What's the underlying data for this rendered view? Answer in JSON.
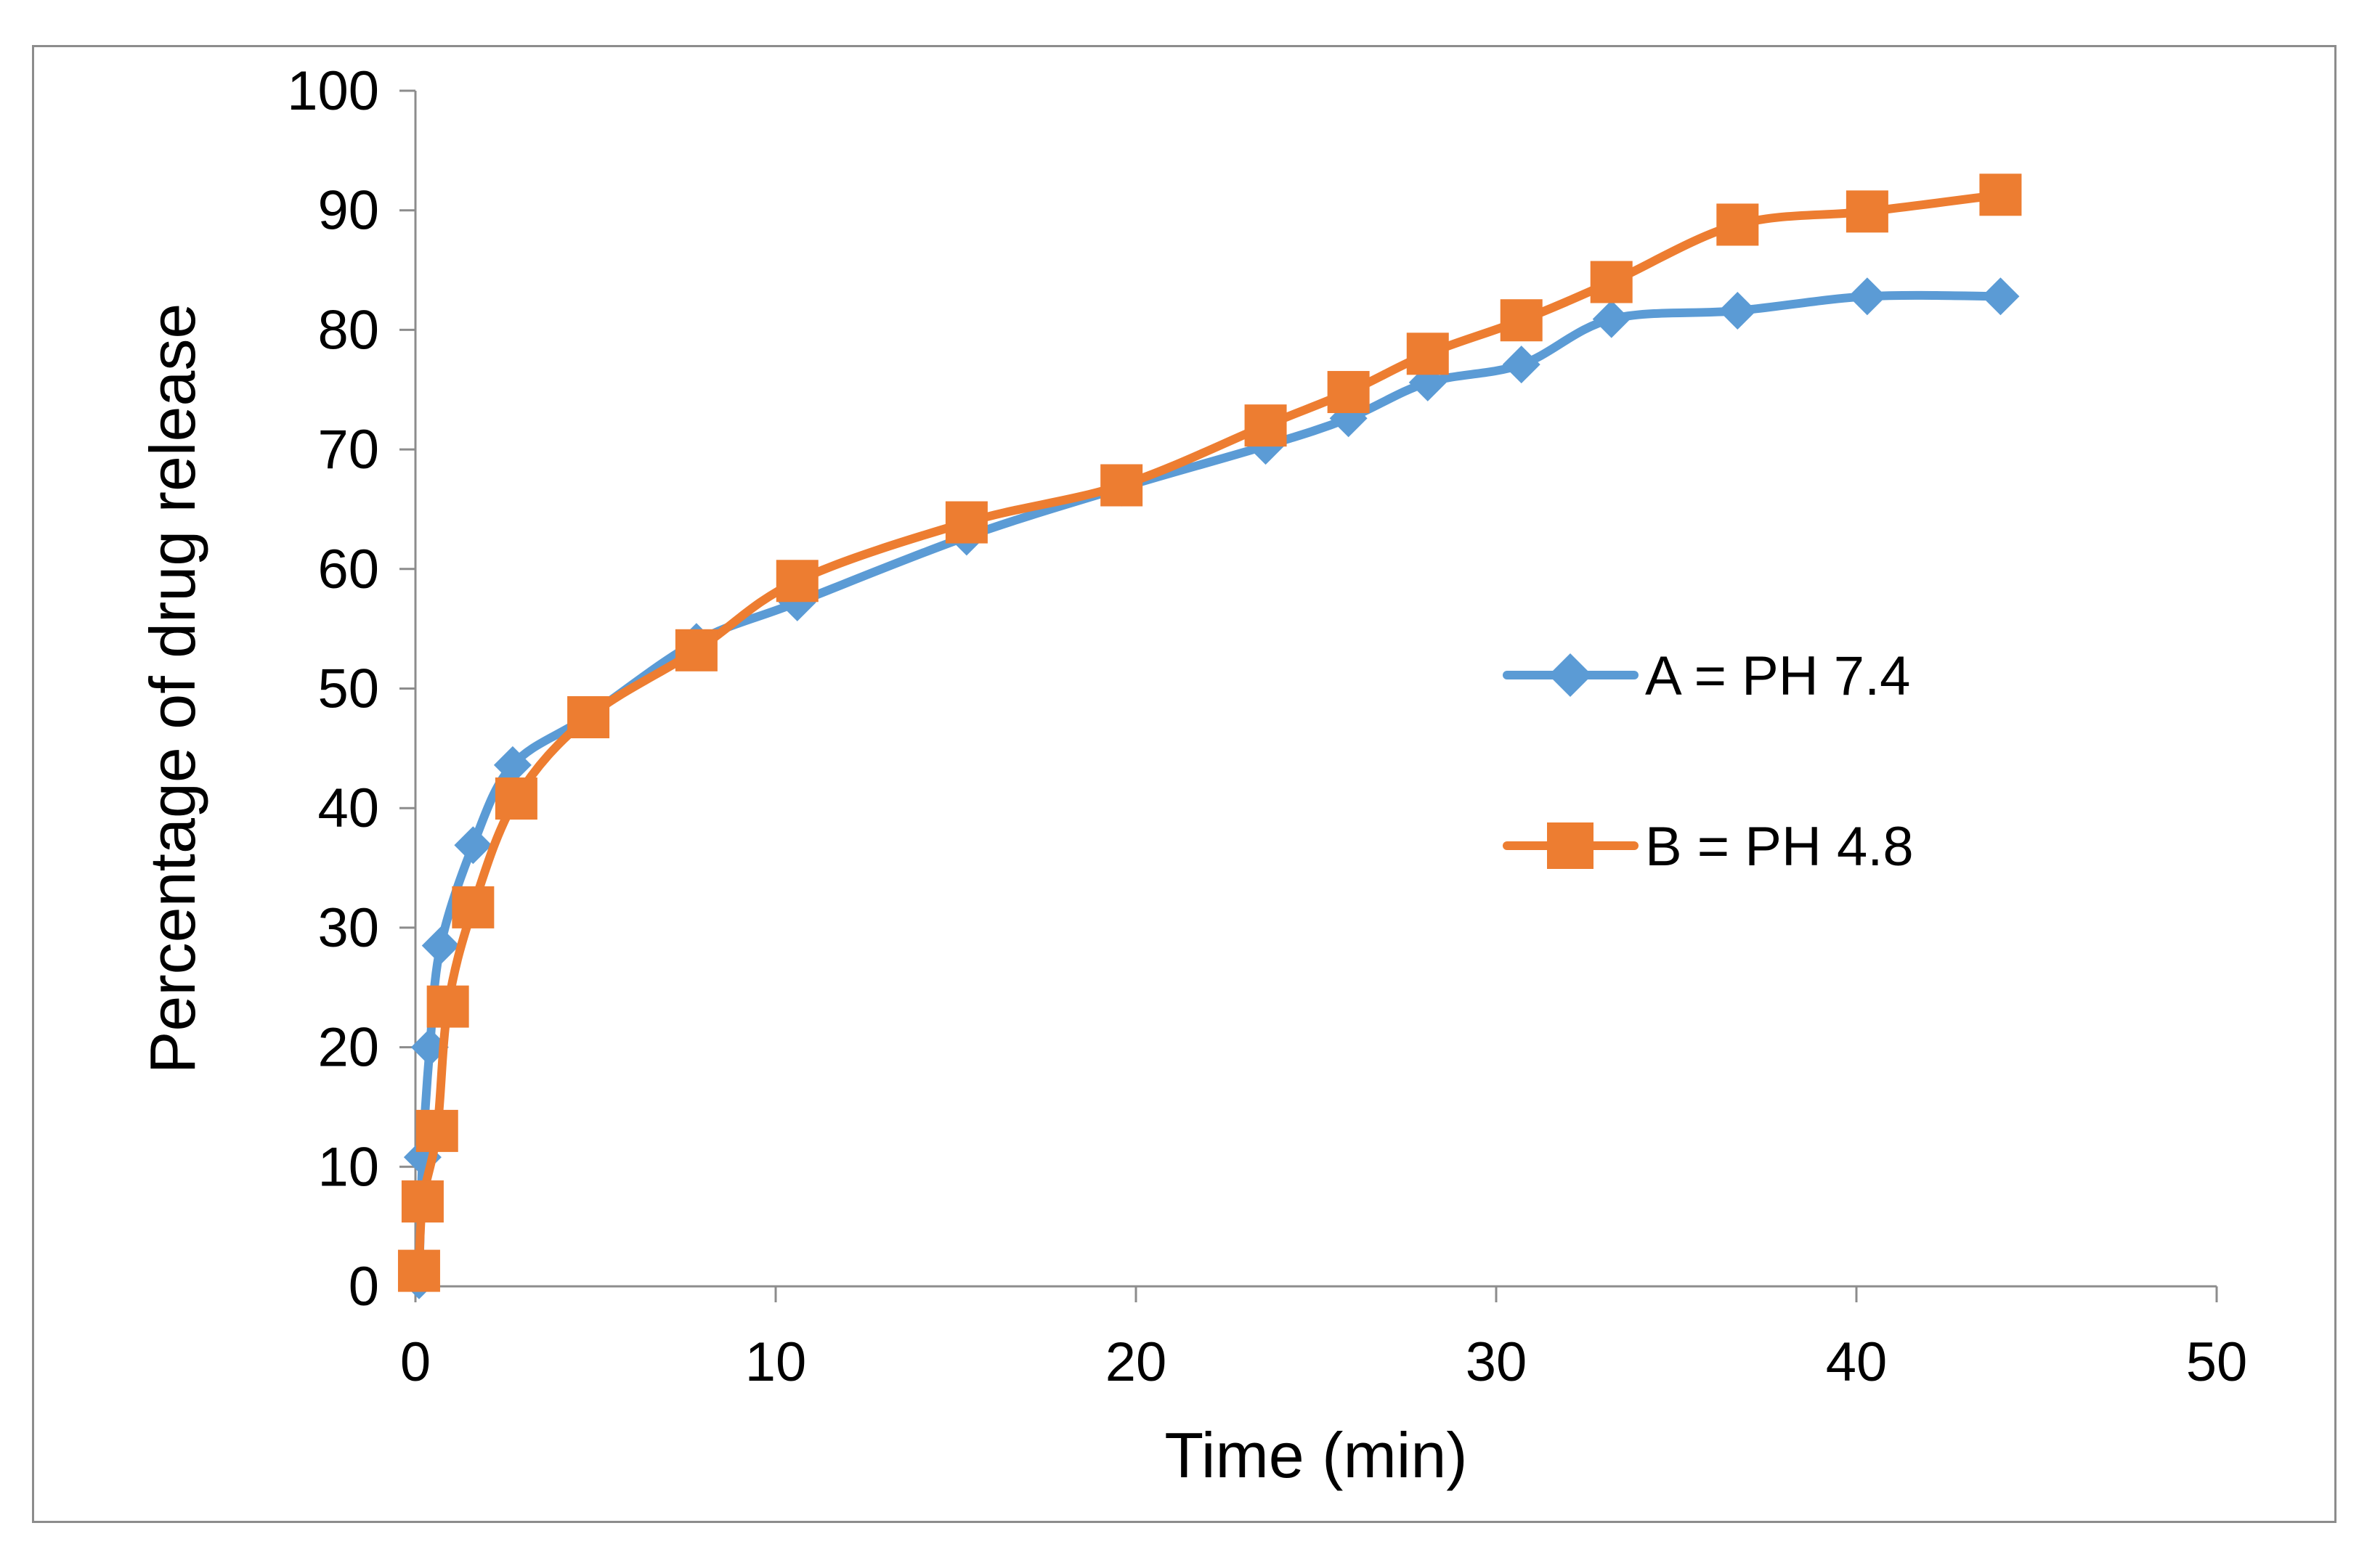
{
  "chart_data": {
    "type": "line",
    "title": "",
    "xlabel": "Time (min)",
    "ylabel": "Percentage of drug release",
    "xlim": [
      0,
      50
    ],
    "ylim": [
      0,
      100
    ],
    "xticks": [
      0,
      10,
      20,
      30,
      40,
      50
    ],
    "yticks": [
      0,
      10,
      20,
      30,
      40,
      50,
      60,
      70,
      80,
      90,
      100
    ],
    "grid": false,
    "legend_position": "right",
    "series": [
      {
        "name": "A = PH 7.4",
        "color": "#5B9BD5",
        "marker": "diamond",
        "x": [
          0.1,
          0.2,
          0.4,
          0.7,
          1.6,
          2.7,
          4.8,
          7.8,
          10.6,
          15.3,
          19.6,
          23.6,
          25.9,
          28.1,
          30.7,
          33.2,
          36.7,
          40.3,
          44.0
        ],
        "y": [
          0.5,
          10.8,
          20.0,
          28.5,
          36.9,
          43.6,
          47.7,
          53.9,
          57.2,
          62.7,
          66.8,
          70.3,
          72.6,
          75.6,
          77.1,
          80.9,
          81.6,
          82.8,
          82.8
        ]
      },
      {
        "name": "B = PH 4.8",
        "color": "#ED7D31",
        "marker": "square",
        "x": [
          0.1,
          0.2,
          0.6,
          0.9,
          1.6,
          2.8,
          4.8,
          7.8,
          10.6,
          15.3,
          19.6,
          23.6,
          25.9,
          28.1,
          30.7,
          33.2,
          36.7,
          40.3,
          44.0
        ],
        "y": [
          1.3,
          7.1,
          13.0,
          23.4,
          31.7,
          40.8,
          47.6,
          53.2,
          59.0,
          63.9,
          67.0,
          72.0,
          74.8,
          78.0,
          80.8,
          84.0,
          88.8,
          89.9,
          91.3
        ]
      }
    ]
  }
}
